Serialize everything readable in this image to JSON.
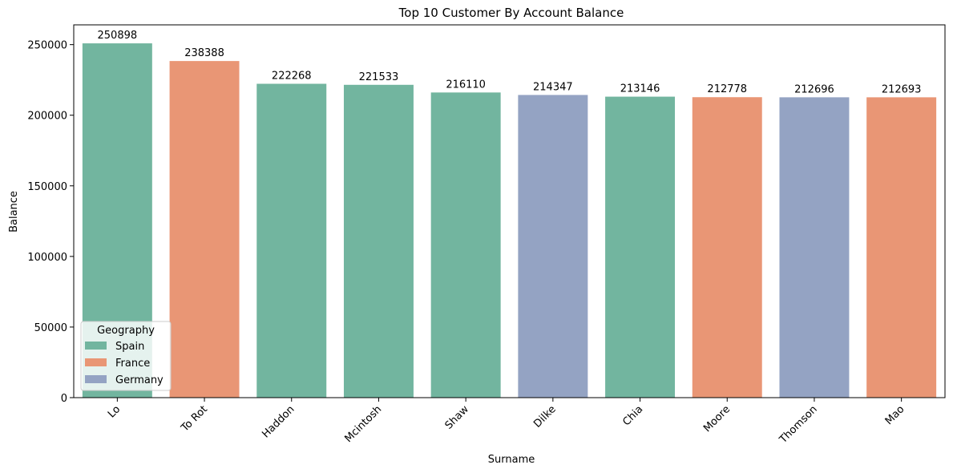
{
  "chart_data": {
    "type": "bar",
    "title": "Top 10 Customer By Account Balance",
    "xlabel": "Surname",
    "ylabel": "Balance",
    "ylim": [
      0,
      264000
    ],
    "yticks": [
      0,
      50000,
      100000,
      150000,
      200000,
      250000
    ],
    "grid": false,
    "categories": [
      "Lo",
      "To Rot",
      "Haddon",
      "Mcintosh",
      "Shaw",
      "Dilke",
      "Chia",
      "Moore",
      "Thomson",
      "Mao"
    ],
    "values": [
      250898,
      238388,
      222268,
      221533,
      216110,
      214347,
      213146,
      212778,
      212696,
      212693
    ],
    "value_labels": [
      "250898",
      "238388",
      "222268",
      "221533",
      "216110",
      "214347",
      "213146",
      "212778",
      "212696",
      "212693"
    ],
    "group": [
      "Spain",
      "France",
      "Spain",
      "Spain",
      "Spain",
      "Germany",
      "Spain",
      "France",
      "Germany",
      "France"
    ],
    "legend": {
      "title": "Geography",
      "placement": "lower-left",
      "entries": [
        {
          "name": "Spain",
          "color": "#72b59f"
        },
        {
          "name": "France",
          "color": "#e99675"
        },
        {
          "name": "Germany",
          "color": "#94a3c3"
        }
      ]
    }
  }
}
